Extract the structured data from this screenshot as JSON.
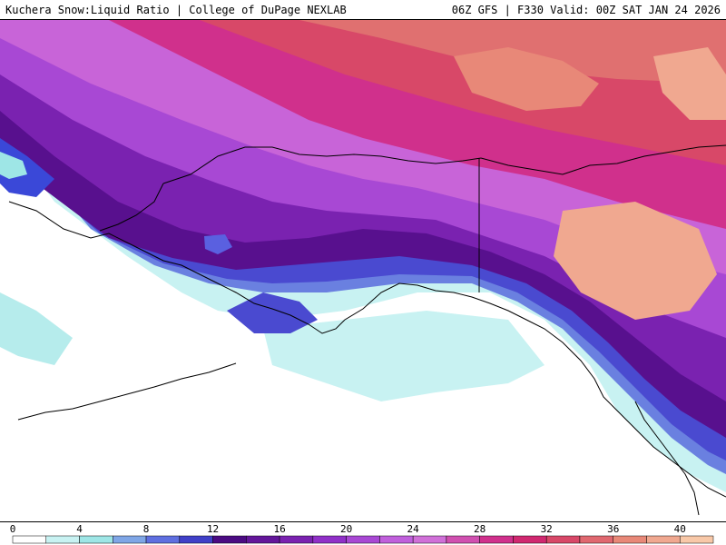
{
  "header": {
    "title_left": "Kuchera Snow:Liquid Ratio | College of DuPage NEXLAB",
    "title_right": "06Z GFS | F330 Valid: 00Z SAT JAN 24 2026"
  },
  "map": {
    "region": "Alaska / Northwest Canada",
    "field": "Snow:Liquid Ratio"
  },
  "colorbar": {
    "min": 0,
    "max": 42,
    "step": 2,
    "tick_labels": [
      "0",
      "4",
      "8",
      "12",
      "16",
      "20",
      "24",
      "28",
      "32",
      "36",
      "40"
    ],
    "tick_values": [
      0,
      4,
      8,
      12,
      16,
      20,
      24,
      28,
      32,
      36,
      40
    ],
    "colors": [
      "#ffffff",
      "#c8f2f2",
      "#9ee6e6",
      "#7fa6e6",
      "#5f6fe0",
      "#4040c8",
      "#4b0b82",
      "#63169a",
      "#7a22b0",
      "#9030c8",
      "#a848d4",
      "#c060dc",
      "#d070d8",
      "#d050b0",
      "#d0308c",
      "#d02870",
      "#d84868",
      "#e06870",
      "#e88878",
      "#f0a890",
      "#f8c8a8"
    ]
  }
}
